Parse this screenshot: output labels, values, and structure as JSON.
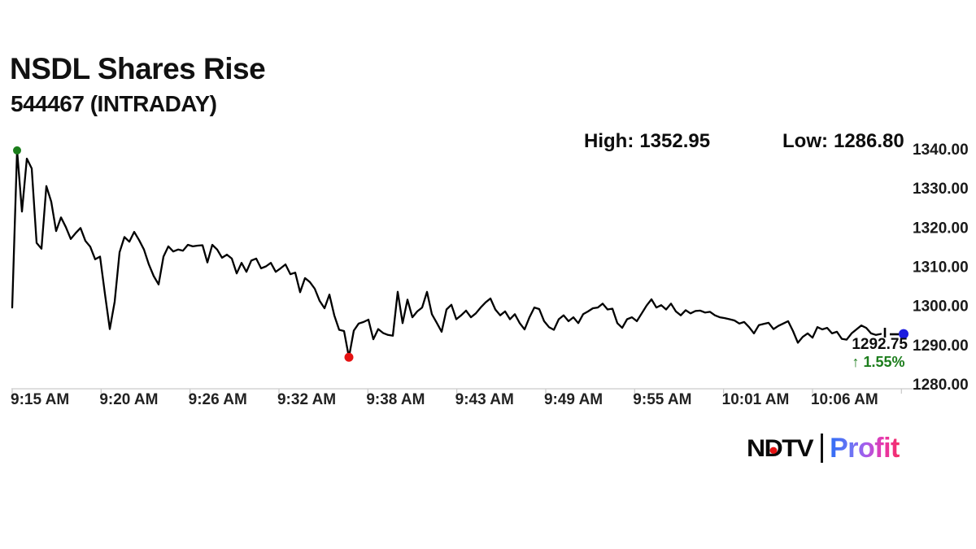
{
  "page": {
    "title": "NSDL Shares Rise",
    "subtitle": "544467 (INTRADAY)"
  },
  "stats": {
    "high_label": "High:",
    "high_value": "1352.95",
    "low_label": "Low:",
    "low_value": "1286.80"
  },
  "last_quote": {
    "price": "1292.75",
    "change": "↑ 1.55%"
  },
  "logo": {
    "ndtv_n": "N",
    "ndtv_d": "D",
    "ndtv_tv": "TV",
    "profit": "Profit"
  },
  "chart_data": {
    "type": "line",
    "title": "NSDL 544467 intraday price",
    "x_tick_labels": [
      "9:15 AM",
      "9:20 AM",
      "9:26 AM",
      "9:32 AM",
      "9:38 AM",
      "9:43 AM",
      "9:49 AM",
      "9:55 AM",
      "10:01 AM",
      "10:06 AM"
    ],
    "y_tick_labels": [
      "1340.00",
      "1330.00",
      "1320.00",
      "1310.00",
      "1300.00",
      "1290.00",
      "1280.00"
    ],
    "ylim": [
      1280,
      1340
    ],
    "grid": false,
    "legend": "none",
    "high": 1352.95,
    "low": 1286.8,
    "last": 1292.75,
    "change_pct": 1.55,
    "prices": [
      1299.5,
      1339.6,
      1324.0,
      1337.5,
      1335.0,
      1316.0,
      1314.5,
      1330.5,
      1326.5,
      1319.0,
      1322.5,
      1320.0,
      1317.0,
      1318.5,
      1319.8,
      1316.5,
      1315.0,
      1311.8,
      1312.5,
      1303.0,
      1294.0,
      1301.0,
      1313.6,
      1317.5,
      1316.3,
      1318.8,
      1316.7,
      1314.3,
      1310.5,
      1307.5,
      1305.4,
      1312.5,
      1315.1,
      1313.8,
      1314.3,
      1314.0,
      1315.5,
      1315.1,
      1315.3,
      1315.4,
      1311.0,
      1315.5,
      1314.3,
      1312.2,
      1313.0,
      1312.0,
      1308.2,
      1310.9,
      1308.6,
      1311.5,
      1312.0,
      1309.5,
      1310.0,
      1310.9,
      1308.6,
      1309.5,
      1310.5,
      1308.0,
      1308.4,
      1303.4,
      1307.0,
      1306.0,
      1304.3,
      1301.2,
      1299.3,
      1302.8,
      1297.5,
      1293.8,
      1293.5,
      1286.8,
      1293.6,
      1295.4,
      1295.8,
      1296.4,
      1291.4,
      1294.0,
      1293.0,
      1292.5,
      1292.3,
      1303.5,
      1295.5,
      1301.5,
      1297.0,
      1298.5,
      1299.5,
      1303.5,
      1297.8,
      1295.6,
      1293.3,
      1299.0,
      1300.2,
      1296.5,
      1297.5,
      1298.7,
      1297.0,
      1298.0,
      1299.5,
      1300.8,
      1301.8,
      1299.0,
      1297.5,
      1298.5,
      1296.5,
      1297.8,
      1295.5,
      1293.9,
      1297.0,
      1299.5,
      1299.1,
      1296.0,
      1294.5,
      1293.8,
      1296.5,
      1297.5,
      1296.0,
      1297.0,
      1295.5,
      1297.8,
      1298.5,
      1299.3,
      1299.5,
      1300.5,
      1299.0,
      1299.2,
      1295.5,
      1294.3,
      1296.5,
      1297.0,
      1296.0,
      1298.0,
      1300.0,
      1301.6,
      1299.5,
      1300.1,
      1299.0,
      1300.5,
      1298.5,
      1297.5,
      1298.8,
      1298.0,
      1298.6,
      1298.7,
      1298.2,
      1298.4,
      1297.5,
      1297.0,
      1296.8,
      1296.5,
      1296.2,
      1295.4,
      1295.8,
      1294.5,
      1292.9,
      1295.0,
      1295.3,
      1295.6,
      1294.0,
      1294.8,
      1295.4,
      1296.0,
      1293.5,
      1290.5,
      1292.0,
      1292.9,
      1291.8,
      1294.5,
      1293.9,
      1294.3,
      1292.9,
      1293.3,
      1291.5,
      1291.3,
      1292.9,
      1293.9,
      1294.9,
      1294.3,
      1292.9,
      1292.5,
      1292.75
    ],
    "markers": {
      "high_dot_index": 1,
      "low_dot_index": 69,
      "last_price": 1292.75
    },
    "colors": {
      "line": "#000000",
      "axis": "#c9c9c9",
      "high_dot": "#1b7e1b",
      "low_dot": "#e51212",
      "last_dot": "#1c1cdf",
      "change_text": "#1c7d1c",
      "tick_text": "#222222"
    }
  }
}
